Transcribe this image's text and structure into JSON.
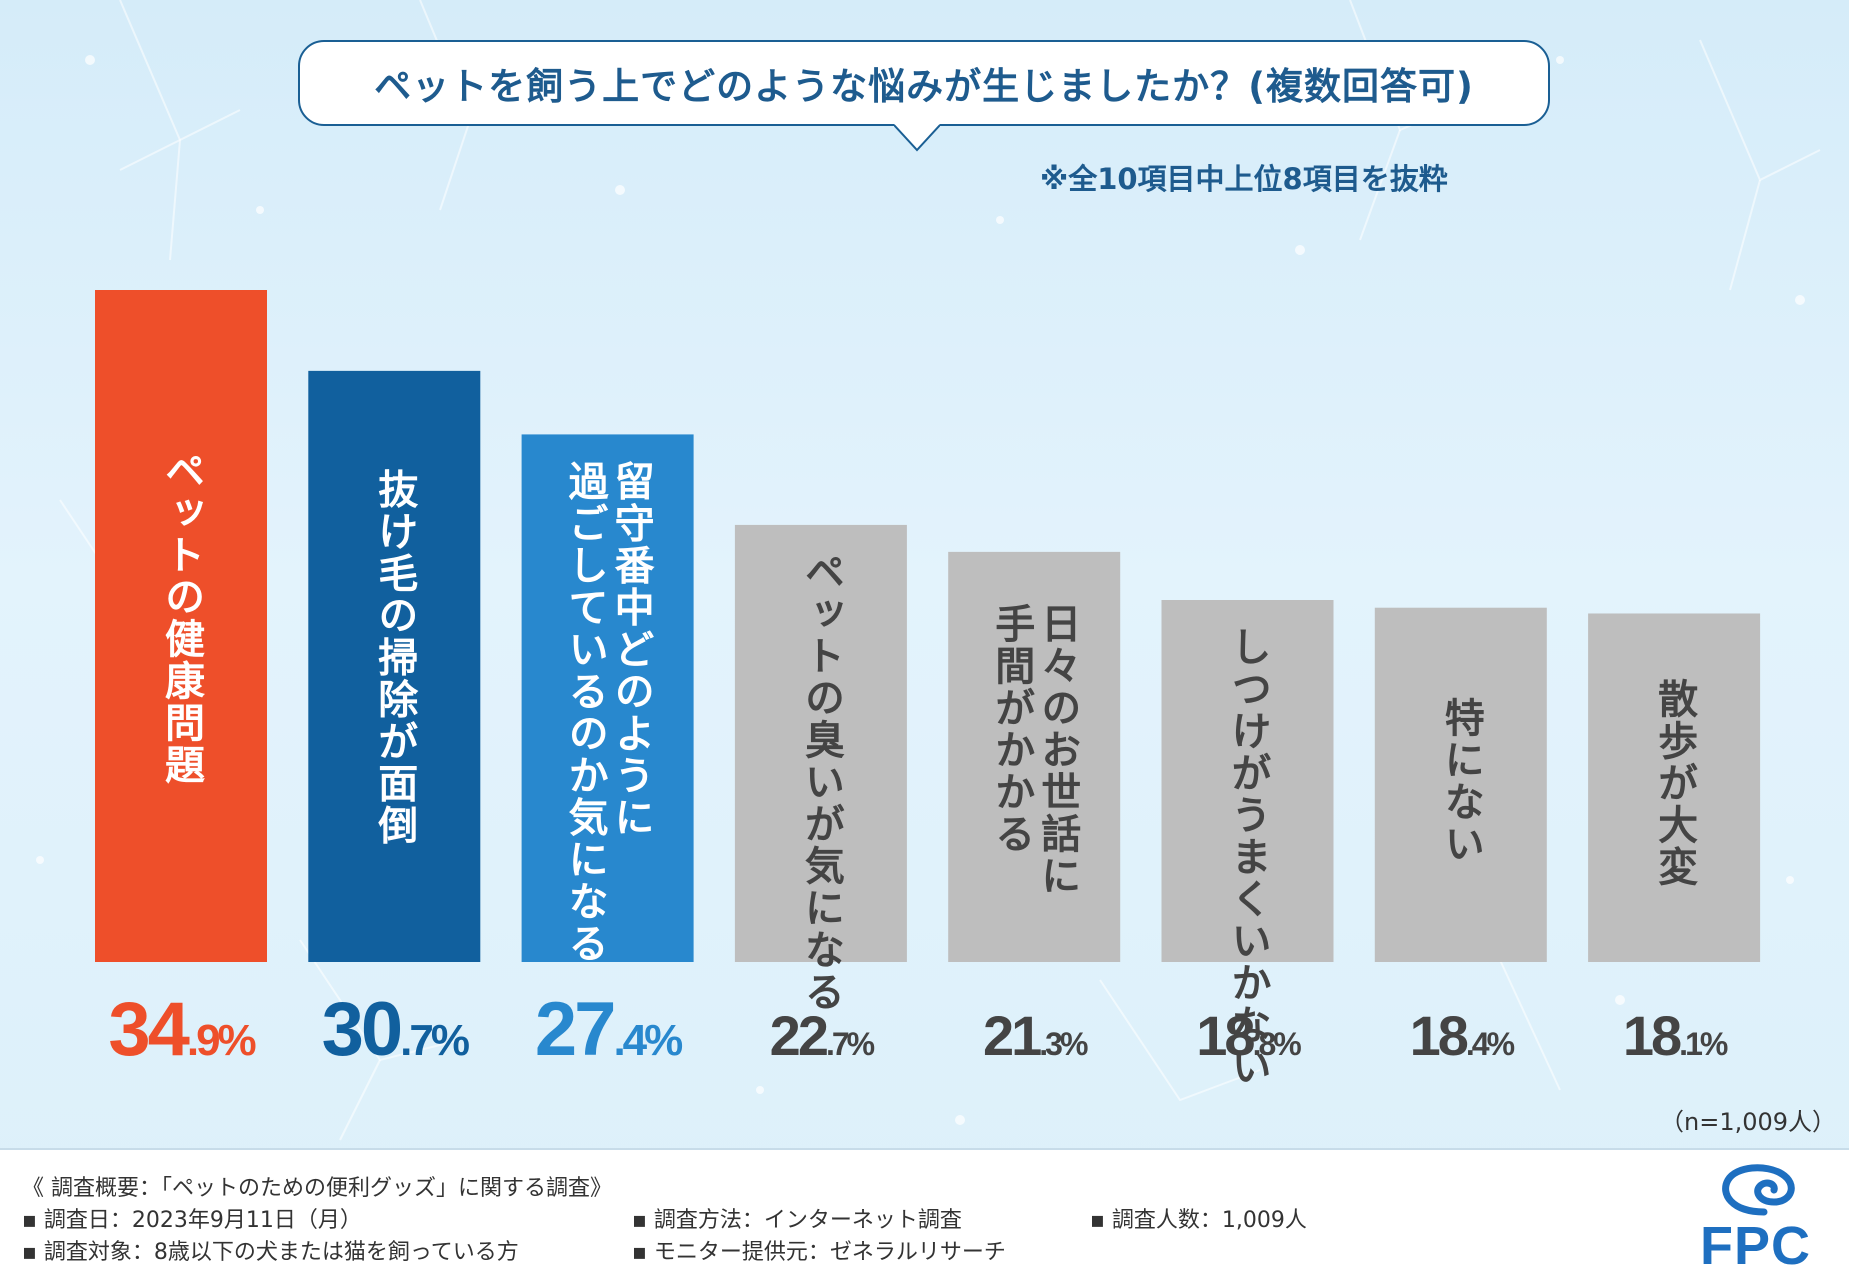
{
  "chart_data": {
    "type": "bar",
    "title": "ペットを飼う上でどのような悩みが生じましたか？(複数回答可)",
    "note": "※全10項目中上位8項目を抜粋",
    "sample": "（n=1,009人）",
    "categories": [
      "ペットの健康問題",
      "抜け毛の掃除が面倒",
      "留守番中どのように過ごしているのか気になる",
      "ペットの臭いが気になる",
      "日々のお世話に手間がかかる",
      "しつけがうまくいかない",
      "特にない",
      "散歩が大変"
    ],
    "label_columns": [
      [
        "ペットの健康問題"
      ],
      [
        "抜け毛の掃除が面倒"
      ],
      [
        "留守番中どのように",
        "過ごしているのか気になる"
      ],
      [
        "ペットの臭いが気になる"
      ],
      [
        "日々のお世話に",
        "手間がかかる"
      ],
      [
        "しつけがうまくいかない"
      ],
      [
        "特にない"
      ],
      [
        "散歩が大変"
      ]
    ],
    "values": [
      34.9,
      30.7,
      27.4,
      22.7,
      21.3,
      18.8,
      18.4,
      18.1
    ],
    "value_labels": [
      {
        "int": "34",
        "dec": ".9",
        "unit": "%"
      },
      {
        "int": "30",
        "dec": ".7",
        "unit": "%"
      },
      {
        "int": "27",
        "dec": ".4",
        "unit": "%"
      },
      {
        "int": "22",
        "dec": ".7",
        "unit": "%"
      },
      {
        "int": "21",
        "dec": ".3",
        "unit": "%"
      },
      {
        "int": "18",
        "dec": ".8",
        "unit": "%"
      },
      {
        "int": "18",
        "dec": ".4",
        "unit": "%"
      },
      {
        "int": "18",
        "dec": ".1",
        "unit": "%"
      }
    ],
    "bar_colors": [
      "#ee4f2a",
      "#11609e",
      "#2888ce",
      "#bebebe",
      "#bebebe",
      "#bebebe",
      "#bebebe",
      "#bebebe"
    ],
    "value_colors": [
      "#ee4f2a",
      "#11609e",
      "#2888ce",
      "#444444",
      "#444444",
      "#444444",
      "#444444",
      "#444444"
    ],
    "ylim": [
      0,
      34.9
    ],
    "grid": false,
    "legend": "none"
  },
  "footer": {
    "survey_title": "《 調査概要：「ペットのための便利グッズ」に関する調査》",
    "items": [
      "▪ 調査日：2023年9月11日（月）",
      "▪ 調査方法：インターネット調査",
      "▪ 調査人数：1,009人",
      "▪ 調査対象：8歳以下の犬または猫を飼っている方",
      "▪ モニター提供元：ゼネラルリサーチ"
    ],
    "logo": "FPC"
  }
}
